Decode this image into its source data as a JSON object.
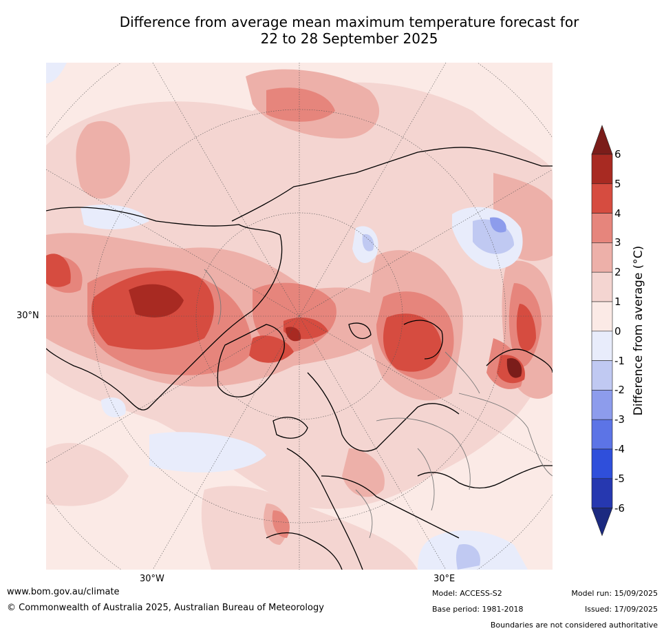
{
  "title_line1": "Difference from average mean maximum temperature forecast for",
  "title_line2": "22 to 28 September 2025",
  "longitude_labels": [
    "30°W",
    "30°E"
  ],
  "latitude_labels": [
    "30°N"
  ],
  "colorbar": {
    "title": "Difference from average (°C)",
    "ticks": [
      "6",
      "5",
      "4",
      "3",
      "2",
      "1",
      "0",
      "-1",
      "-2",
      "-3",
      "-4",
      "-5",
      "-6"
    ],
    "colors": {
      "above_6": "#7b1d1a",
      "5_to_6": "#a82a22",
      "4_to_5": "#d64c40",
      "3_to_4": "#e6857c",
      "2_to_3": "#edb0a9",
      "1_to_2": "#f4d5d1",
      "0_to_1": "#fbeae6",
      "neg1_to_0": "#e8ecfb",
      "neg2_to_neg1": "#c0c9f2",
      "neg3_to_neg2": "#8d9cec",
      "neg4_to_neg3": "#5c74e6",
      "neg5_to_neg4": "#2f4fdb",
      "neg6_to_neg5": "#2638b0",
      "below_neg6": "#1c2a80"
    }
  },
  "footer": {
    "website": "www.bom.gov.au/climate",
    "copyright": "© Commonwealth of Australia 2025, Australian Bureau of Meteorology",
    "model": "Model: ACCESS-S2",
    "base_period": "Base period: 1981-2018",
    "model_run": "Model run: 15/09/2025",
    "issued": "Issued: 17/09/2025",
    "disclaimer": "Boundaries are not considered authoritative"
  }
}
